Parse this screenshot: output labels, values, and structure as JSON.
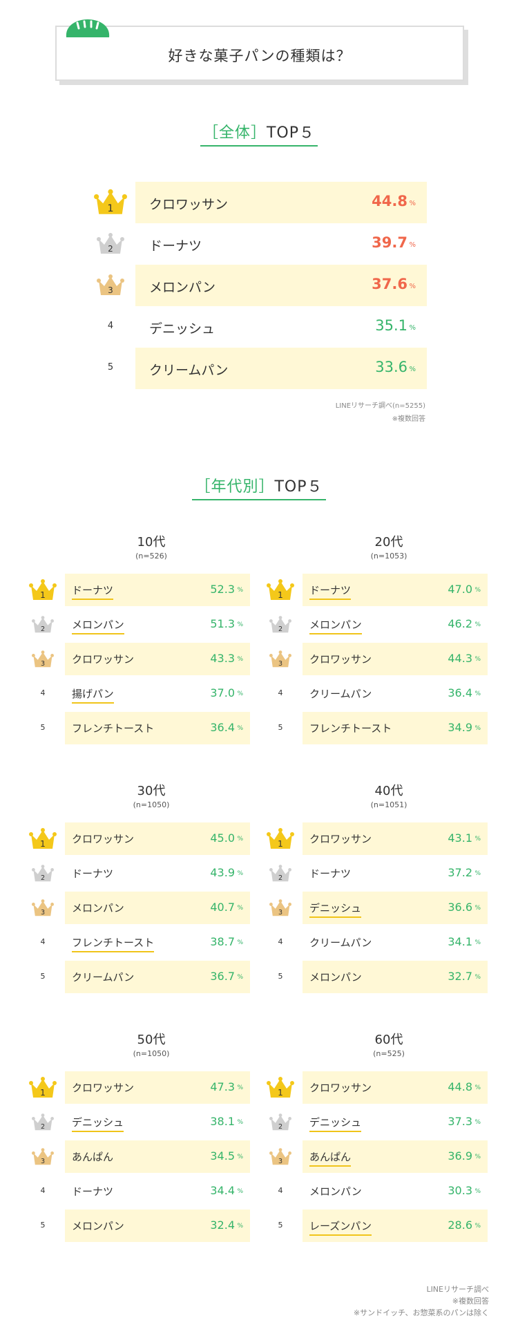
{
  "header": {
    "title": "好きな菓子パンの種類は？"
  },
  "colors": {
    "accent_green": "#35b46a",
    "highlight_red": "#f0674b",
    "row_shade": "#fff8d6",
    "gold": "#f0c419",
    "silver": "#c9c9c9",
    "bronze": "#e8c27d"
  },
  "overall": {
    "heading_bracket": "［全体］",
    "heading_rest": "TOP５",
    "pct_sign": "%",
    "rows": [
      {
        "rank": "1",
        "name": "クロワッサン",
        "value": "44.8"
      },
      {
        "rank": "2",
        "name": "ドーナツ",
        "value": "39.7"
      },
      {
        "rank": "3",
        "name": "メロンパン",
        "value": "37.6"
      },
      {
        "rank": "4",
        "name": "デニッシュ",
        "value": "35.1"
      },
      {
        "rank": "5",
        "name": "クリームパン",
        "value": "33.6"
      }
    ],
    "source_line1": "LINEリサーチ調べ(n=5255)",
    "source_line2": "※複数回答"
  },
  "by_age": {
    "heading_bracket": "［年代別］",
    "heading_rest": "TOP５",
    "pct_sign": "%",
    "groups": [
      {
        "name": "10代",
        "n": "(n=526)",
        "rows": [
          {
            "rank": "1",
            "name": "ドーナツ",
            "value": "52.3"
          },
          {
            "rank": "2",
            "name": "メロンパン",
            "value": "51.3"
          },
          {
            "rank": "3",
            "name": "クロワッサン",
            "value": "43.3"
          },
          {
            "rank": "4",
            "name": "揚げパン",
            "value": "37.0"
          },
          {
            "rank": "5",
            "name": "フレンチトースト",
            "value": "36.4"
          }
        ]
      },
      {
        "name": "20代",
        "n": "(n=1053)",
        "rows": [
          {
            "rank": "1",
            "name": "ドーナツ",
            "value": "47.0"
          },
          {
            "rank": "2",
            "name": "メロンパン",
            "value": "46.2"
          },
          {
            "rank": "3",
            "name": "クロワッサン",
            "value": "44.3"
          },
          {
            "rank": "4",
            "name": "クリームパン",
            "value": "36.4"
          },
          {
            "rank": "5",
            "name": "フレンチトースト",
            "value": "34.9"
          }
        ]
      },
      {
        "name": "30代",
        "n": "(n=1050)",
        "rows": [
          {
            "rank": "1",
            "name": "クロワッサン",
            "value": "45.0"
          },
          {
            "rank": "2",
            "name": "ドーナツ",
            "value": "43.9"
          },
          {
            "rank": "3",
            "name": "メロンパン",
            "value": "40.7"
          },
          {
            "rank": "4",
            "name": "フレンチトースト",
            "value": "38.7"
          },
          {
            "rank": "5",
            "name": "クリームパン",
            "value": "36.7"
          }
        ]
      },
      {
        "name": "40代",
        "n": "(n=1051)",
        "rows": [
          {
            "rank": "1",
            "name": "クロワッサン",
            "value": "43.1"
          },
          {
            "rank": "2",
            "name": "ドーナツ",
            "value": "37.2"
          },
          {
            "rank": "3",
            "name": "デニッシュ",
            "value": "36.6"
          },
          {
            "rank": "4",
            "name": "クリームパン",
            "value": "34.1"
          },
          {
            "rank": "5",
            "name": "メロンパン",
            "value": "32.7"
          }
        ]
      },
      {
        "name": "50代",
        "n": "(n=1050)",
        "rows": [
          {
            "rank": "1",
            "name": "クロワッサン",
            "value": "47.3"
          },
          {
            "rank": "2",
            "name": "デニッシュ",
            "value": "38.1"
          },
          {
            "rank": "3",
            "name": "あんぱん",
            "value": "34.5"
          },
          {
            "rank": "4",
            "name": "ドーナツ",
            "value": "34.4"
          },
          {
            "rank": "5",
            "name": "メロンパン",
            "value": "32.4"
          }
        ]
      },
      {
        "name": "60代",
        "n": "(n=525)",
        "rows": [
          {
            "rank": "1",
            "name": "クロワッサン",
            "value": "44.8"
          },
          {
            "rank": "2",
            "name": "デニッシュ",
            "value": "37.3"
          },
          {
            "rank": "3",
            "name": "あんぱん",
            "value": "36.9"
          },
          {
            "rank": "4",
            "name": "メロンパン",
            "value": "30.3"
          },
          {
            "rank": "5",
            "name": "レーズンパン",
            "value": "28.6"
          }
        ]
      }
    ],
    "source_line1": "LINEリサーチ調べ",
    "source_line2": "※複数回答",
    "source_line3": "※サンドイッチ、お惣菜系のパンは除く"
  },
  "chart_data": [
    {
      "type": "table",
      "title": "好きな菓子パンの種類は？ ［全体］TOP５",
      "categories": [
        "クロワッサン",
        "ドーナツ",
        "メロンパン",
        "デニッシュ",
        "クリームパン"
      ],
      "values": [
        44.8,
        39.7,
        37.6,
        35.1,
        33.6
      ],
      "unit": "%",
      "n": "n=5255"
    },
    {
      "type": "table",
      "title": "10代",
      "n": "n=526",
      "unit": "%",
      "categories": [
        "ドーナツ",
        "メロンパン",
        "クロワッサン",
        "揚げパン",
        "フレンチトースト"
      ],
      "values": [
        52.3,
        51.3,
        43.3,
        37.0,
        36.4
      ]
    },
    {
      "type": "table",
      "title": "20代",
      "n": "n=1053",
      "unit": "%",
      "categories": [
        "ドーナツ",
        "メロンパン",
        "クロワッサン",
        "クリームパン",
        "フレンチトースト"
      ],
      "values": [
        47.0,
        46.2,
        44.3,
        36.4,
        34.9
      ]
    },
    {
      "type": "table",
      "title": "30代",
      "n": "n=1050",
      "unit": "%",
      "categories": [
        "クロワッサン",
        "ドーナツ",
        "メロンパン",
        "フレンチトースト",
        "クリームパン"
      ],
      "values": [
        45.0,
        43.9,
        40.7,
        38.7,
        36.7
      ]
    },
    {
      "type": "table",
      "title": "40代",
      "n": "n=1051",
      "unit": "%",
      "categories": [
        "クロワッサン",
        "ドーナツ",
        "デニッシュ",
        "クリームパン",
        "メロンパン"
      ],
      "values": [
        43.1,
        37.2,
        36.6,
        34.1,
        32.7
      ]
    },
    {
      "type": "table",
      "title": "50代",
      "n": "n=1050",
      "unit": "%",
      "categories": [
        "クロワッサン",
        "デニッシュ",
        "あんぱん",
        "ドーナツ",
        "メロンパン"
      ],
      "values": [
        47.3,
        38.1,
        34.5,
        34.4,
        32.4
      ]
    },
    {
      "type": "table",
      "title": "60代",
      "n": "n=525",
      "unit": "%",
      "categories": [
        "クロワッサン",
        "デニッシュ",
        "あんぱん",
        "メロンパン",
        "レーズンパン"
      ],
      "values": [
        44.8,
        37.3,
        36.9,
        30.3,
        28.6
      ]
    }
  ]
}
